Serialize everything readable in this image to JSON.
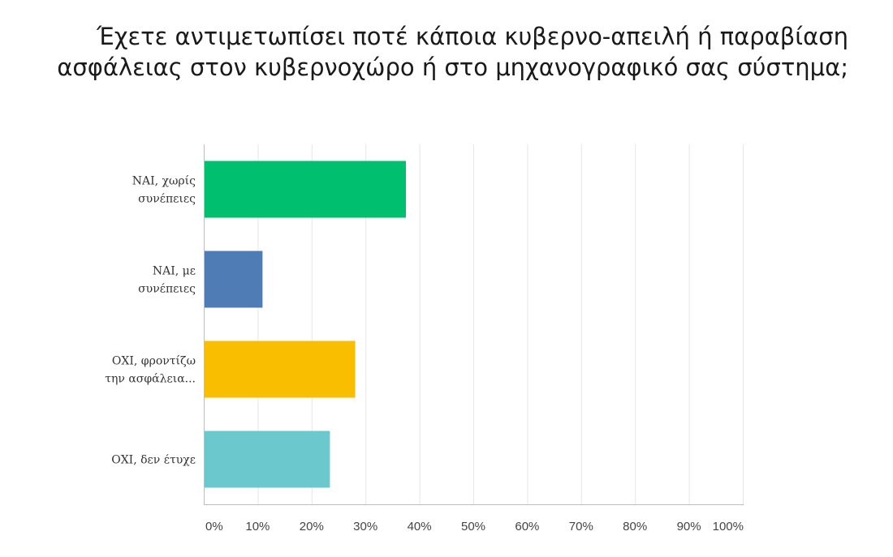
{
  "chart_data": {
    "type": "bar",
    "orientation": "horizontal",
    "title": "Έχετε αντιμετωπίσει ποτέ κάποια κυβερνο-απειλή ή παραβίαση ασφάλειας στον κυβερνοχώρο ή στο μηχανογραφικό σας σύστημα;",
    "categories": [
      [
        "ΝΑΙ, χωρίς",
        "συνέπειες"
      ],
      [
        "ΝΑΙ, με",
        "συνέπειες"
      ],
      [
        "ΟΧΙ, φροντίζω",
        "την ασφάλεια..."
      ],
      [
        "ΟΧΙ, δεν έτυχε"
      ]
    ],
    "values": [
      37.5,
      10.9,
      28.1,
      23.4
    ],
    "colors": [
      "#00bf6f",
      "#507cb6",
      "#f9be00",
      "#6bc8cd"
    ],
    "xlim": [
      0,
      100
    ],
    "ticks": [
      "0%",
      "10%",
      "20%",
      "30%",
      "40%",
      "50%",
      "60%",
      "70%",
      "80%",
      "90%",
      "100%"
    ],
    "tick_values": [
      0,
      10,
      20,
      30,
      40,
      50,
      60,
      70,
      80,
      90,
      100
    ],
    "grid": true,
    "grid_color": "#e6e6e6",
    "axis_color": "#bdbdbd"
  }
}
